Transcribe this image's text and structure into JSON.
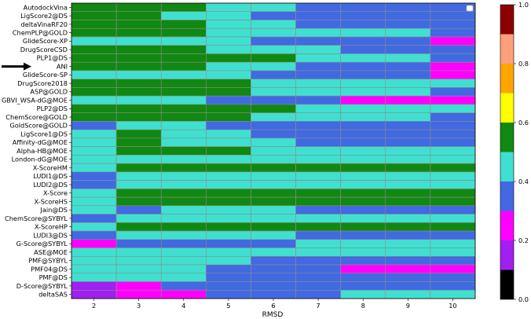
{
  "chart_data": {
    "type": "heatmap",
    "xlabel": "RMSD",
    "x": [
      "2",
      "3",
      "4",
      "5",
      "6",
      "7",
      "8",
      "9",
      "10"
    ],
    "rows": [
      "AutodockVina",
      "LigScore2@DS",
      "deltaVinaRF20",
      "ChemPLP@GOLD",
      "GlideScore-XP",
      "DrugScoreCSD",
      "PLP1@DS",
      "ANI",
      "GlideScore-SP",
      "DrugScore2018",
      "ASP@GOLD",
      "GBVI_WSA-dG@MOE",
      "PLP2@DS",
      "ChemScore@GOLD",
      "GoldScore@GOLD",
      "LigScore1@DS",
      "Affinity-dG@MOE",
      "Alpha-HB@MOE",
      "London-dG@MOE",
      "X-ScoreHM",
      "LUDI1@DS",
      "LUDI2@DS",
      "X-Score",
      "X-ScoreHS",
      "Jain@DS",
      "ChemScore@SYBYL",
      "X-ScoreHP",
      "LUDI3@DS",
      "G-Score@SYBYL",
      "ASE@MOE",
      "PMF@SYBYL",
      "PMF04@DS",
      "PMF@DS",
      "D-Score@SYBYL",
      "deltaSAS"
    ],
    "highlighted_row": "ANI",
    "values": [
      [
        0.55,
        0.55,
        0.55,
        0.45,
        0.45,
        0.35,
        0.35,
        0.35,
        0.35
      ],
      [
        0.55,
        0.55,
        0.45,
        0.45,
        0.35,
        0.35,
        0.35,
        0.35,
        0.35
      ],
      [
        0.55,
        0.55,
        0.55,
        0.45,
        0.45,
        0.35,
        0.35,
        0.35,
        0.35
      ],
      [
        0.55,
        0.55,
        0.55,
        0.45,
        0.45,
        0.45,
        0.45,
        0.45,
        0.35
      ],
      [
        0.45,
        0.45,
        0.45,
        0.45,
        0.35,
        0.35,
        0.35,
        0.35,
        0.25
      ],
      [
        0.55,
        0.55,
        0.55,
        0.45,
        0.45,
        0.45,
        0.35,
        0.35,
        0.35
      ],
      [
        0.55,
        0.55,
        0.55,
        0.55,
        0.55,
        0.45,
        0.45,
        0.45,
        0.35
      ],
      [
        0.55,
        0.55,
        0.55,
        0.45,
        0.45,
        0.35,
        0.35,
        0.35,
        0.25
      ],
      [
        0.45,
        0.45,
        0.45,
        0.45,
        0.35,
        0.35,
        0.35,
        0.35,
        0.25
      ],
      [
        0.55,
        0.55,
        0.55,
        0.55,
        0.45,
        0.45,
        0.45,
        0.45,
        0.45
      ],
      [
        0.55,
        0.55,
        0.55,
        0.55,
        0.45,
        0.45,
        0.45,
        0.45,
        0.35
      ],
      [
        0.45,
        0.45,
        0.45,
        0.35,
        0.35,
        0.35,
        0.25,
        0.25,
        0.25
      ],
      [
        0.55,
        0.55,
        0.55,
        0.55,
        0.55,
        0.45,
        0.45,
        0.45,
        0.45
      ],
      [
        0.55,
        0.55,
        0.55,
        0.55,
        0.45,
        0.45,
        0.45,
        0.45,
        0.35
      ],
      [
        0.35,
        0.45,
        0.45,
        0.35,
        0.35,
        0.35,
        0.35,
        0.35,
        0.35
      ],
      [
        0.45,
        0.55,
        0.45,
        0.45,
        0.35,
        0.35,
        0.35,
        0.35,
        0.35
      ],
      [
        0.45,
        0.55,
        0.45,
        0.45,
        0.45,
        0.35,
        0.35,
        0.35,
        0.35
      ],
      [
        0.45,
        0.55,
        0.55,
        0.55,
        0.45,
        0.45,
        0.45,
        0.45,
        0.45
      ],
      [
        0.45,
        0.45,
        0.45,
        0.45,
        0.45,
        0.45,
        0.45,
        0.45,
        0.45
      ],
      [
        0.45,
        0.55,
        0.55,
        0.55,
        0.55,
        0.55,
        0.55,
        0.55,
        0.55
      ],
      [
        0.35,
        0.45,
        0.45,
        0.45,
        0.45,
        0.45,
        0.45,
        0.45,
        0.45
      ],
      [
        0.35,
        0.45,
        0.45,
        0.45,
        0.45,
        0.45,
        0.45,
        0.45,
        0.45
      ],
      [
        0.45,
        0.55,
        0.55,
        0.55,
        0.55,
        0.55,
        0.55,
        0.55,
        0.55
      ],
      [
        0.45,
        0.55,
        0.55,
        0.55,
        0.55,
        0.55,
        0.55,
        0.55,
        0.55
      ],
      [
        0.45,
        0.35,
        0.45,
        0.45,
        0.45,
        0.35,
        0.35,
        0.35,
        0.35
      ],
      [
        0.35,
        0.45,
        0.45,
        0.45,
        0.45,
        0.45,
        0.45,
        0.45,
        0.45
      ],
      [
        0.45,
        0.55,
        0.55,
        0.55,
        0.55,
        0.55,
        0.55,
        0.55,
        0.55
      ],
      [
        0.35,
        0.45,
        0.45,
        0.45,
        0.45,
        0.35,
        0.35,
        0.35,
        0.35
      ],
      [
        0.25,
        0.35,
        0.35,
        0.35,
        0.35,
        0.45,
        0.45,
        0.45,
        0.45
      ],
      [
        0.45,
        0.45,
        0.45,
        0.45,
        0.45,
        0.45,
        0.45,
        0.45,
        0.45
      ],
      [
        0.45,
        0.45,
        0.45,
        0.45,
        0.35,
        0.35,
        0.35,
        0.35,
        0.35
      ],
      [
        0.45,
        0.45,
        0.45,
        0.35,
        0.35,
        0.35,
        0.25,
        0.25,
        0.25
      ],
      [
        0.45,
        0.45,
        0.45,
        0.35,
        0.35,
        0.35,
        0.35,
        0.35,
        0.35
      ],
      [
        0.15,
        0.25,
        0.35,
        0.35,
        0.35,
        0.35,
        0.35,
        0.35,
        0.35
      ],
      [
        0.15,
        0.25,
        0.25,
        0.35,
        0.35,
        0.35,
        0.45,
        0.45,
        0.45
      ]
    ],
    "colorbar": {
      "range": [
        0.0,
        1.0
      ],
      "ticks": [
        "0.0",
        "0.2",
        "0.4",
        "0.6",
        "0.8",
        "1.0"
      ],
      "bins": [
        {
          "from": 0.0,
          "to": 0.1,
          "color": "#000000"
        },
        {
          "from": 0.1,
          "to": 0.2,
          "color": "#a020f0"
        },
        {
          "from": 0.2,
          "to": 0.3,
          "color": "#ff00ff"
        },
        {
          "from": 0.3,
          "to": 0.4,
          "color": "#4169e1"
        },
        {
          "from": 0.4,
          "to": 0.5,
          "color": "#40e0d0"
        },
        {
          "from": 0.5,
          "to": 0.6,
          "color": "#118811"
        },
        {
          "from": 0.6,
          "to": 0.7,
          "color": "#ffff00"
        },
        {
          "from": 0.7,
          "to": 0.8,
          "color": "#ffa500"
        },
        {
          "from": 0.8,
          "to": 0.9,
          "color": "#ffa07a"
        },
        {
          "from": 0.9,
          "to": 1.0,
          "color": "#8b0000"
        }
      ]
    }
  }
}
